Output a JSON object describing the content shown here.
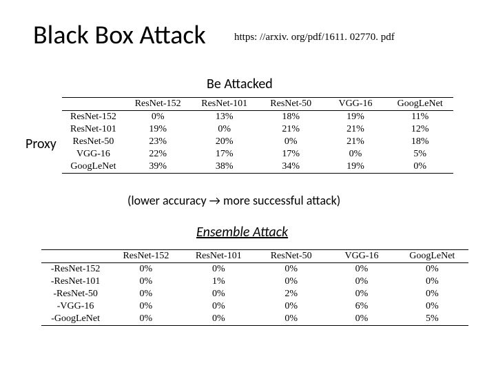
{
  "title": "Black Box Attack",
  "url": "https: //arxiv. org/pdf/1611. 02770. pdf",
  "subtitle_top": "Be Attacked",
  "proxy_label": "Proxy",
  "caption": "(lower accuracy → more successful attack)",
  "subtitle_bottom": "Ensemble Attack",
  "table1": {
    "columns": [
      "",
      "ResNet-152",
      "ResNet-101",
      "ResNet-50",
      "VGG-16",
      "GoogLeNet"
    ],
    "rows": [
      [
        "ResNet-152",
        "0%",
        "13%",
        "18%",
        "19%",
        "11%"
      ],
      [
        "ResNet-101",
        "19%",
        "0%",
        "21%",
        "21%",
        "12%"
      ],
      [
        "ResNet-50",
        "23%",
        "20%",
        "0%",
        "21%",
        "18%"
      ],
      [
        "VGG-16",
        "22%",
        "17%",
        "17%",
        "0%",
        "5%"
      ],
      [
        "GoogLeNet",
        "39%",
        "38%",
        "34%",
        "19%",
        "0%"
      ]
    ],
    "col_widths": [
      "16%",
      "17%",
      "17%",
      "17%",
      "16%",
      "17%"
    ]
  },
  "table2": {
    "columns": [
      "",
      "ResNet-152",
      "ResNet-101",
      "ResNet-50",
      "VGG-16",
      "GoogLeNet"
    ],
    "rows": [
      [
        "-ResNet-152",
        "0%",
        "0%",
        "0%",
        "0%",
        "0%"
      ],
      [
        "-ResNet-101",
        "0%",
        "1%",
        "0%",
        "0%",
        "0%"
      ],
      [
        "-ResNet-50",
        "0%",
        "0%",
        "2%",
        "0%",
        "0%"
      ],
      [
        "-VGG-16",
        "0%",
        "0%",
        "0%",
        "6%",
        "0%"
      ],
      [
        "-GoogLeNet",
        "0%",
        "0%",
        "0%",
        "0%",
        "5%"
      ]
    ],
    "col_widths": [
      "16%",
      "17%",
      "17%",
      "17%",
      "16%",
      "17%"
    ]
  }
}
